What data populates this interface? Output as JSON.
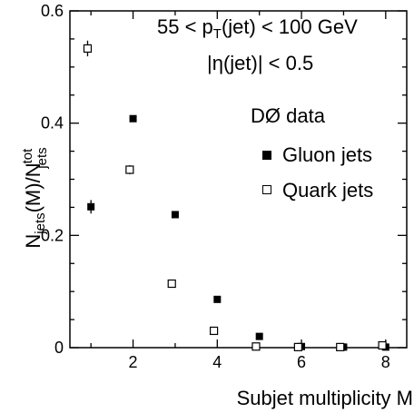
{
  "chart_data": {
    "type": "scatter",
    "xlabel": "Subjet multiplicity M",
    "ylabel_main": "N",
    "ylabel_sub1": "jets",
    "ylabel_mid": "(M)/N",
    "ylabel_sup": "tot",
    "ylabel_sub2": "jets",
    "xlim": [
      0.5,
      8.5
    ],
    "ylim": [
      0,
      0.6
    ],
    "x_ticks": [
      {
        "value": 2,
        "label": "2"
      },
      {
        "value": 4,
        "label": "4"
      },
      {
        "value": 6,
        "label": "6"
      },
      {
        "value": 8,
        "label": "8"
      }
    ],
    "y_ticks": [
      {
        "value": 0,
        "label": "0"
      },
      {
        "value": 0.2,
        "label": "0.2"
      },
      {
        "value": 0.4,
        "label": "0.4"
      },
      {
        "value": 0.6,
        "label": "0.6"
      }
    ],
    "annotations": {
      "line1": "55 < p",
      "line1_sub": "T",
      "line1_rest": "(jet) < 100 GeV",
      "line2": "|η(jet)| < 0.5",
      "experiment": "DØ data"
    },
    "series": [
      {
        "name": "Gluon jets",
        "marker": "filled-square",
        "points": [
          {
            "x": 1,
            "y": 0.251,
            "err": 0.012
          },
          {
            "x": 2,
            "y": 0.408,
            "err": 0.003
          },
          {
            "x": 3,
            "y": 0.237,
            "err": 0.003
          },
          {
            "x": 4,
            "y": 0.086,
            "err": 0.002
          },
          {
            "x": 5,
            "y": 0.02,
            "err": 0.001
          },
          {
            "x": 6,
            "y": 0.002,
            "err": 0.001
          },
          {
            "x": 7,
            "y": 0.001,
            "err": 0.001
          },
          {
            "x": 8,
            "y": 0.001,
            "err": 0.001
          }
        ]
      },
      {
        "name": "Quark jets",
        "marker": "open-square",
        "points": [
          {
            "x": 0.92,
            "y": 0.533,
            "err": 0.014
          },
          {
            "x": 1.92,
            "y": 0.317,
            "err": 0.008
          },
          {
            "x": 2.92,
            "y": 0.114,
            "err": 0.005
          },
          {
            "x": 3.92,
            "y": 0.03,
            "err": 0.002
          },
          {
            "x": 4.92,
            "y": 0.002,
            "err": 0.001
          },
          {
            "x": 5.92,
            "y": 0.001,
            "err": 0.001
          },
          {
            "x": 6.92,
            "y": 0.001,
            "err": 0.001
          },
          {
            "x": 7.92,
            "y": 0.004,
            "err": 0.002
          }
        ]
      }
    ],
    "colors": {
      "axis": "#000000",
      "marker": "#000000",
      "background": "#ffffff"
    }
  }
}
